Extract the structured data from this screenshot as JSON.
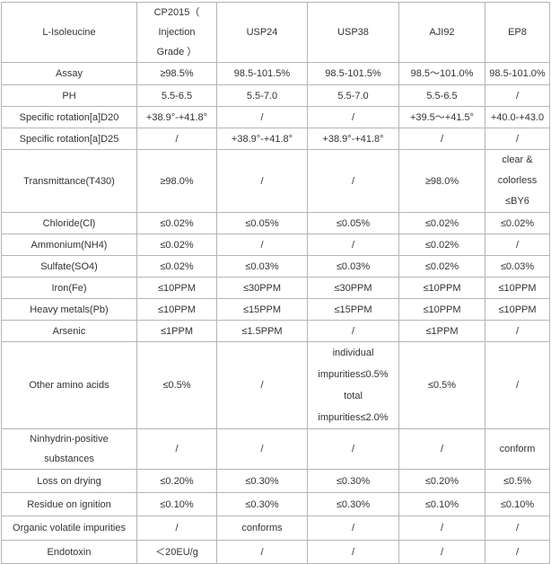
{
  "table": {
    "headers": [
      "L-Isoleucine",
      "CP2015（ Injection Grade ）",
      "USP24",
      "USP38",
      "AJI92",
      "EP8"
    ],
    "rows": [
      {
        "cells": [
          "Assay",
          "≥98.5%",
          "98.5-101.5%",
          "98.5-101.5%",
          "98.5～101.0%",
          "98.5-101.0%"
        ]
      },
      {
        "cells": [
          "PH",
          "5.5-6.5",
          "5.5-7.0",
          "5.5-7.0",
          "5.5-6.5",
          "/"
        ]
      },
      {
        "cells": [
          "Specific rotation[a]D20",
          "+38.9°-+41.8°",
          "/",
          "/",
          "+39.5～+41.5°",
          "+40.0-+43.0"
        ]
      },
      {
        "cells": [
          "Specific rotation[a]D25",
          "/",
          "+38.9°-+41.8°",
          "+38.9°-+41.8°",
          "/",
          "/"
        ]
      },
      {
        "cells": [
          "Transmittance(T430)",
          "≥98.0%",
          "/",
          "/",
          "≥98.0%",
          "clear & colorless ≤BY6"
        ]
      },
      {
        "cells": [
          "Chloride(Cl)",
          "≤0.02%",
          "≤0.05%",
          "≤0.05%",
          "≤0.02%",
          "≤0.02%"
        ]
      },
      {
        "cells": [
          "Ammonium(NH4)",
          "≤0.02%",
          "/",
          "/",
          "≤0.02%",
          "/"
        ]
      },
      {
        "cells": [
          "Sulfate(SO4)",
          "≤0.02%",
          "≤0.03%",
          "≤0.03%",
          "≤0.02%",
          "≤0.03%"
        ]
      },
      {
        "cells": [
          "Iron(Fe)",
          "≤10PPM",
          "≤30PPM",
          "≤30PPM",
          "≤10PPM",
          "≤10PPM"
        ]
      },
      {
        "cells": [
          "Heavy metals(Pb)",
          "≤10PPM",
          "≤15PPM",
          "≤15PPM",
          "≤10PPM",
          "≤10PPM"
        ]
      },
      {
        "cells": [
          "Arsenic",
          "≤1PPM",
          "≤1.5PPM",
          "/",
          "≤1PPM",
          "/"
        ]
      },
      {
        "cells": [
          "Other amino acids",
          "≤0.5%",
          "/",
          "individual impurities≤0.5% total impurities≤2.0%",
          "≤0.5%",
          "/"
        ]
      },
      {
        "cells": [
          "Ninhydrin-positive substances",
          "/",
          "/",
          "/",
          "/",
          "conform"
        ]
      },
      {
        "cells": [
          "Loss on drying",
          "≤0.20%",
          "≤0.30%",
          "≤0.30%",
          "≤0.20%",
          "≤0.5%"
        ]
      },
      {
        "cells": [
          "Residue on ignition",
          "≤0.10%",
          "≤0.30%",
          "≤0.30%",
          "≤0.10%",
          "≤0.10%"
        ]
      },
      {
        "cells": [
          "Organic volatile impurities",
          "/",
          "conforms",
          "/",
          "/",
          "/"
        ]
      },
      {
        "cells": [
          "Endotoxin",
          "＜20EU/g",
          "/",
          "/",
          "/",
          "/"
        ]
      }
    ]
  }
}
